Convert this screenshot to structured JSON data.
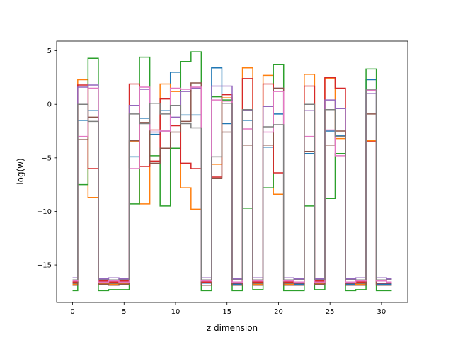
{
  "chart_data": {
    "type": "line",
    "drawstyle": "steps-mid",
    "title": "",
    "xlabel": "z dimension",
    "ylabel": "log(w)",
    "xlim": [
      -1.55,
      32.55
    ],
    "ylim": [
      -18.5,
      5.9
    ],
    "xticks": [
      0,
      5,
      10,
      15,
      20,
      25,
      30
    ],
    "yticks": [
      -15,
      -10,
      -5,
      0,
      5
    ],
    "grid": false,
    "legend": "none",
    "x": [
      0,
      1,
      2,
      3,
      4,
      5,
      6,
      7,
      8,
      9,
      10,
      11,
      12,
      13,
      14,
      15,
      16,
      17,
      18,
      19,
      20,
      21,
      22,
      23,
      24,
      25,
      26,
      27,
      28,
      29,
      30,
      31
    ],
    "series": [
      {
        "color": "#1f77b4",
        "values": [
          -16.7,
          -1.5,
          -0.6,
          -16.6,
          -16.7,
          -16.6,
          -4.9,
          -1.3,
          -2.8,
          -0.6,
          3.0,
          -1.0,
          -1.0,
          -16.7,
          3.4,
          -1.8,
          -16.8,
          -1.5,
          -16.7,
          -4.0,
          -0.9,
          -16.7,
          -16.8,
          -4.6,
          -16.6,
          -2.5,
          -2.9,
          -16.8,
          -16.7,
          2.3,
          -16.8,
          -16.8
        ]
      },
      {
        "color": "#ff7f0e",
        "values": [
          -16.8,
          2.3,
          -8.7,
          -16.7,
          -16.8,
          -16.7,
          -3.5,
          -9.3,
          -2.4,
          1.9,
          1.2,
          -7.8,
          -9.8,
          -16.9,
          -5.6,
          0.6,
          -16.9,
          3.4,
          -16.8,
          2.7,
          -8.4,
          -16.8,
          -16.9,
          2.8,
          -16.7,
          2.4,
          -3.2,
          -16.9,
          -16.8,
          -3.4,
          -16.9,
          -16.9
        ]
      },
      {
        "color": "#2ca02c",
        "values": [
          -17.4,
          -7.5,
          4.3,
          -17.4,
          -17.3,
          -17.3,
          -9.3,
          4.4,
          -4.8,
          -9.5,
          -4.1,
          4.0,
          4.9,
          -17.4,
          0.7,
          0.4,
          -17.4,
          -9.7,
          -17.3,
          -7.8,
          3.7,
          -17.4,
          -17.4,
          -9.5,
          -17.3,
          -8.8,
          -4.6,
          -17.4,
          -17.3,
          3.3,
          -17.4,
          -17.4
        ]
      },
      {
        "color": "#d62728",
        "values": [
          -16.6,
          1.8,
          -6.0,
          -16.5,
          -16.6,
          -16.5,
          1.9,
          -5.8,
          -5.3,
          0.5,
          -2.0,
          -5.5,
          -6.0,
          -16.6,
          -6.8,
          0.9,
          -16.7,
          2.4,
          -16.6,
          1.9,
          -6.4,
          -16.6,
          -16.7,
          1.7,
          -16.5,
          2.5,
          1.5,
          -16.7,
          -16.6,
          -3.5,
          -16.7,
          -16.7
        ]
      },
      {
        "color": "#9467bd",
        "values": [
          -16.2,
          1.6,
          1.8,
          -16.3,
          -16.2,
          -16.3,
          -0.1,
          1.4,
          -2.6,
          -2.5,
          -1.2,
          1.2,
          1.5,
          -16.2,
          1.7,
          1.7,
          -16.3,
          -0.6,
          -16.2,
          -0.2,
          1.5,
          -16.2,
          -16.3,
          -0.6,
          -16.3,
          0.4,
          -0.4,
          -16.3,
          -16.2,
          1.0,
          -16.2,
          -16.3
        ]
      },
      {
        "color": "#8c564b",
        "values": [
          -16.9,
          -3.3,
          -1.2,
          -16.8,
          -16.9,
          -16.8,
          -3.4,
          -1.7,
          -5.5,
          -4.1,
          -2.6,
          -1.6,
          2.0,
          -16.9,
          -6.9,
          -2.6,
          -16.9,
          -3.8,
          -16.9,
          -3.8,
          1.5,
          -16.9,
          -16.9,
          -4.4,
          -16.8,
          -3.8,
          -2.5,
          -16.9,
          -16.9,
          -0.9,
          -16.9,
          -16.9
        ]
      },
      {
        "color": "#e377c2",
        "values": [
          -16.5,
          -3.0,
          1.5,
          -16.6,
          -16.5,
          -16.6,
          -6.0,
          1.6,
          -2.4,
          -2.5,
          1.5,
          1.4,
          1.6,
          -16.5,
          0.4,
          0.3,
          -16.6,
          -2.3,
          -16.5,
          -2.6,
          1.2,
          -16.5,
          -16.6,
          -3.0,
          -16.6,
          -2.4,
          -4.8,
          -16.6,
          -16.5,
          1.3,
          -16.5,
          -16.6
        ]
      },
      {
        "color": "#7f7f7f",
        "values": [
          -16.4,
          0.0,
          -1.6,
          -16.4,
          -16.4,
          -16.4,
          -0.9,
          -1.8,
          0.1,
          -0.9,
          -0.1,
          -1.8,
          -2.2,
          -16.4,
          -4.9,
          0.1,
          -16.4,
          -0.5,
          -16.4,
          -2.1,
          -1.9,
          -16.4,
          -16.4,
          0.0,
          -16.4,
          -0.5,
          -3.0,
          -16.4,
          -16.4,
          1.4,
          -16.4,
          -16.4
        ]
      }
    ]
  }
}
